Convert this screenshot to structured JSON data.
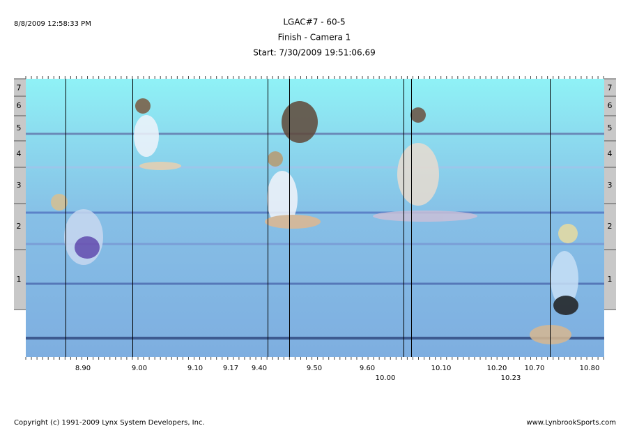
{
  "header": {
    "timestamp": "8/8/2009 12:58:33 PM",
    "title": "LGAC#7 - 60-5",
    "subtitle": "Finish - Camera 1",
    "start": "Start: 7/30/2009 19:51:06.69"
  },
  "lanes": [
    "7",
    "6",
    "5",
    "4",
    "3",
    "2",
    "1"
  ],
  "time_labels": [
    "8.90",
    "9.00",
    "9.10",
    "9.17",
    "9.40",
    "9.50",
    "9.60",
    "10.10",
    "10.20",
    "10.70",
    "10.80"
  ],
  "time_labels_lower": [
    "10.00",
    "10.23"
  ],
  "footer": {
    "copyright": "Copyright (c) 1991-2009 Lynx System Developers, Inc.",
    "website": "www.LynbrookSports.com"
  }
}
